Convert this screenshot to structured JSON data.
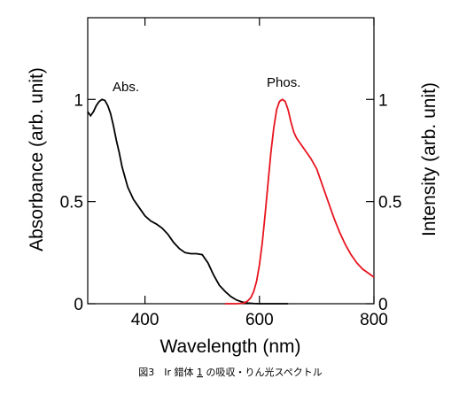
{
  "chart_data": {
    "type": "line",
    "xlabel": "Wavelength (nm)",
    "ylabel": "Absorbance (arb. unit)",
    "ylabel_right": "Intensity (arb. unit)",
    "xlim": [
      300,
      800
    ],
    "ylim": [
      0,
      1.4
    ],
    "ylim_right": [
      0,
      1.4
    ],
    "x_ticks": [
      400,
      600,
      800
    ],
    "x_tick_labels": [
      "400",
      "600",
      "800"
    ],
    "y_ticks": [
      0,
      0.5,
      1
    ],
    "y_tick_labels": [
      "0",
      "0.5",
      "1"
    ],
    "y_right_ticks": [
      0,
      0.5,
      1
    ],
    "y_right_tick_labels": [
      "0",
      "0.5",
      "1"
    ],
    "grid": false,
    "legend": "none",
    "annotations": [
      "Abs.",
      "Phos."
    ],
    "caption": "図3　Ir 錯体 1 の吸収・りん光スペクトル",
    "caption_parts": {
      "prefix": "図3　Ir 錯体 ",
      "compound": "1",
      "suffix": " の吸収・りん光スペクトル"
    },
    "colors": {
      "abs": "#000000",
      "phos": "#e8141e"
    },
    "series": [
      {
        "name": "Abs.",
        "axis": "left",
        "x": [
          300,
          305,
          310,
          315,
          320,
          325,
          330,
          335,
          340,
          345,
          350,
          355,
          360,
          365,
          370,
          375,
          380,
          385,
          390,
          395,
          400,
          410,
          420,
          430,
          440,
          450,
          460,
          470,
          480,
          490,
          500,
          510,
          520,
          530,
          540,
          550,
          560,
          570,
          580,
          590,
          600,
          620,
          650
        ],
        "y": [
          0.94,
          0.92,
          0.94,
          0.97,
          0.99,
          1.0,
          0.995,
          0.97,
          0.93,
          0.87,
          0.8,
          0.74,
          0.67,
          0.62,
          0.57,
          0.54,
          0.51,
          0.49,
          0.47,
          0.45,
          0.43,
          0.405,
          0.39,
          0.37,
          0.34,
          0.3,
          0.27,
          0.25,
          0.245,
          0.245,
          0.24,
          0.2,
          0.14,
          0.09,
          0.06,
          0.035,
          0.018,
          0.008,
          0.003,
          0.001,
          0.0,
          0.0,
          0.0
        ]
      },
      {
        "name": "Phos.",
        "axis": "right",
        "x": [
          540,
          560,
          570,
          575,
          580,
          585,
          590,
          595,
          600,
          605,
          610,
          615,
          620,
          625,
          630,
          635,
          640,
          645,
          650,
          655,
          660,
          665,
          670,
          680,
          690,
          700,
          710,
          720,
          730,
          740,
          750,
          760,
          770,
          780,
          790,
          800
        ],
        "y": [
          0.0,
          0.0,
          0.002,
          0.006,
          0.015,
          0.03,
          0.06,
          0.11,
          0.19,
          0.3,
          0.44,
          0.59,
          0.74,
          0.86,
          0.95,
          0.99,
          1.0,
          0.99,
          0.95,
          0.89,
          0.84,
          0.81,
          0.79,
          0.75,
          0.71,
          0.66,
          0.58,
          0.5,
          0.42,
          0.35,
          0.29,
          0.24,
          0.2,
          0.17,
          0.15,
          0.13
        ]
      }
    ]
  }
}
